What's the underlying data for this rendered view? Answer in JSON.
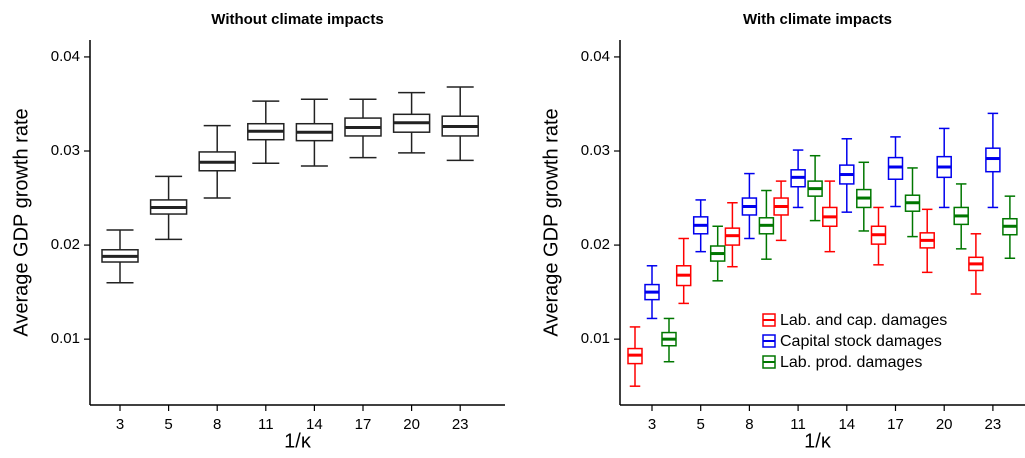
{
  "chart_data": [
    {
      "type": "box",
      "title": "Without climate impacts",
      "xlabel": "1/κ",
      "ylabel": "Average GDP growth rate",
      "categories": [
        "3",
        "5",
        "8",
        "11",
        "14",
        "17",
        "20",
        "23"
      ],
      "ylim": [
        0.003,
        0.0418
      ],
      "yticks": [
        0.01,
        0.02,
        0.03,
        0.04
      ],
      "series": [
        {
          "color": "#222222",
          "boxes": [
            {
              "low": 0.016,
              "q1": 0.0182,
              "median": 0.0188,
              "q3": 0.0195,
              "high": 0.0216
            },
            {
              "low": 0.0206,
              "q1": 0.0233,
              "median": 0.024,
              "q3": 0.0248,
              "high": 0.0273
            },
            {
              "low": 0.025,
              "q1": 0.0279,
              "median": 0.0288,
              "q3": 0.0299,
              "high": 0.0327
            },
            {
              "low": 0.0287,
              "q1": 0.0312,
              "median": 0.0321,
              "q3": 0.0329,
              "high": 0.0353
            },
            {
              "low": 0.0284,
              "q1": 0.0311,
              "median": 0.032,
              "q3": 0.0329,
              "high": 0.0355
            },
            {
              "low": 0.0293,
              "q1": 0.0316,
              "median": 0.0325,
              "q3": 0.0335,
              "high": 0.0355
            },
            {
              "low": 0.0298,
              "q1": 0.032,
              "median": 0.033,
              "q3": 0.0339,
              "high": 0.0362
            },
            {
              "low": 0.029,
              "q1": 0.0316,
              "median": 0.0326,
              "q3": 0.0337,
              "high": 0.0368
            }
          ]
        }
      ]
    },
    {
      "type": "box",
      "title": "With climate impacts",
      "xlabel": "1/κ",
      "ylabel": "Average GDP growth rate",
      "categories": [
        "3",
        "5",
        "8",
        "11",
        "14",
        "17",
        "20",
        "23"
      ],
      "ylim": [
        0.003,
        0.0418
      ],
      "yticks": [
        0.01,
        0.02,
        0.03,
        0.04
      ],
      "legend": "lower right",
      "series": [
        {
          "name": "Lab. and cap. damages",
          "color": "#ff0000",
          "boxes": [
            {
              "low": 0.005,
              "q1": 0.0074,
              "median": 0.0083,
              "q3": 0.009,
              "high": 0.0113
            },
            {
              "low": 0.0138,
              "q1": 0.0157,
              "median": 0.0168,
              "q3": 0.0178,
              "high": 0.0207
            },
            {
              "low": 0.0177,
              "q1": 0.02,
              "median": 0.021,
              "q3": 0.0218,
              "high": 0.0245
            },
            {
              "low": 0.0205,
              "q1": 0.0232,
              "median": 0.0241,
              "q3": 0.025,
              "high": 0.0268
            },
            {
              "low": 0.0193,
              "q1": 0.022,
              "median": 0.023,
              "q3": 0.024,
              "high": 0.0268
            },
            {
              "low": 0.0179,
              "q1": 0.0201,
              "median": 0.0211,
              "q3": 0.022,
              "high": 0.024
            },
            {
              "low": 0.0171,
              "q1": 0.0197,
              "median": 0.0205,
              "q3": 0.0213,
              "high": 0.0238
            },
            {
              "low": 0.0148,
              "q1": 0.0173,
              "median": 0.018,
              "q3": 0.0187,
              "high": 0.0212
            }
          ]
        },
        {
          "name": "Capital stock damages",
          "color": "#0000ee",
          "boxes": [
            {
              "low": 0.0122,
              "q1": 0.0142,
              "median": 0.015,
              "q3": 0.0158,
              "high": 0.0178
            },
            {
              "low": 0.0193,
              "q1": 0.0212,
              "median": 0.0221,
              "q3": 0.023,
              "high": 0.0248
            },
            {
              "low": 0.0207,
              "q1": 0.0232,
              "median": 0.0241,
              "q3": 0.025,
              "high": 0.0276
            },
            {
              "low": 0.024,
              "q1": 0.0262,
              "median": 0.0272,
              "q3": 0.028,
              "high": 0.0301
            },
            {
              "low": 0.0235,
              "q1": 0.0265,
              "median": 0.0275,
              "q3": 0.0285,
              "high": 0.0313
            },
            {
              "low": 0.0241,
              "q1": 0.027,
              "median": 0.0283,
              "q3": 0.0293,
              "high": 0.0315
            },
            {
              "low": 0.024,
              "q1": 0.0272,
              "median": 0.0283,
              "q3": 0.0294,
              "high": 0.0324
            },
            {
              "low": 0.024,
              "q1": 0.0278,
              "median": 0.0292,
              "q3": 0.0303,
              "high": 0.034
            }
          ]
        },
        {
          "name": "Lab. prod. damages",
          "color": "#007700",
          "boxes": [
            {
              "low": 0.0076,
              "q1": 0.0093,
              "median": 0.01,
              "q3": 0.0107,
              "high": 0.0122
            },
            {
              "low": 0.0162,
              "q1": 0.0183,
              "median": 0.0191,
              "q3": 0.0199,
              "high": 0.022
            },
            {
              "low": 0.0185,
              "q1": 0.0212,
              "median": 0.0221,
              "q3": 0.0229,
              "high": 0.0258
            },
            {
              "low": 0.0226,
              "q1": 0.0252,
              "median": 0.026,
              "q3": 0.0268,
              "high": 0.0295
            },
            {
              "low": 0.0215,
              "q1": 0.024,
              "median": 0.025,
              "q3": 0.0259,
              "high": 0.0288
            },
            {
              "low": 0.0209,
              "q1": 0.0236,
              "median": 0.0245,
              "q3": 0.0253,
              "high": 0.0282
            },
            {
              "low": 0.0196,
              "q1": 0.0222,
              "median": 0.0231,
              "q3": 0.024,
              "high": 0.0265
            },
            {
              "low": 0.0186,
              "q1": 0.0211,
              "median": 0.022,
              "q3": 0.0228,
              "high": 0.0252
            }
          ]
        }
      ]
    }
  ]
}
